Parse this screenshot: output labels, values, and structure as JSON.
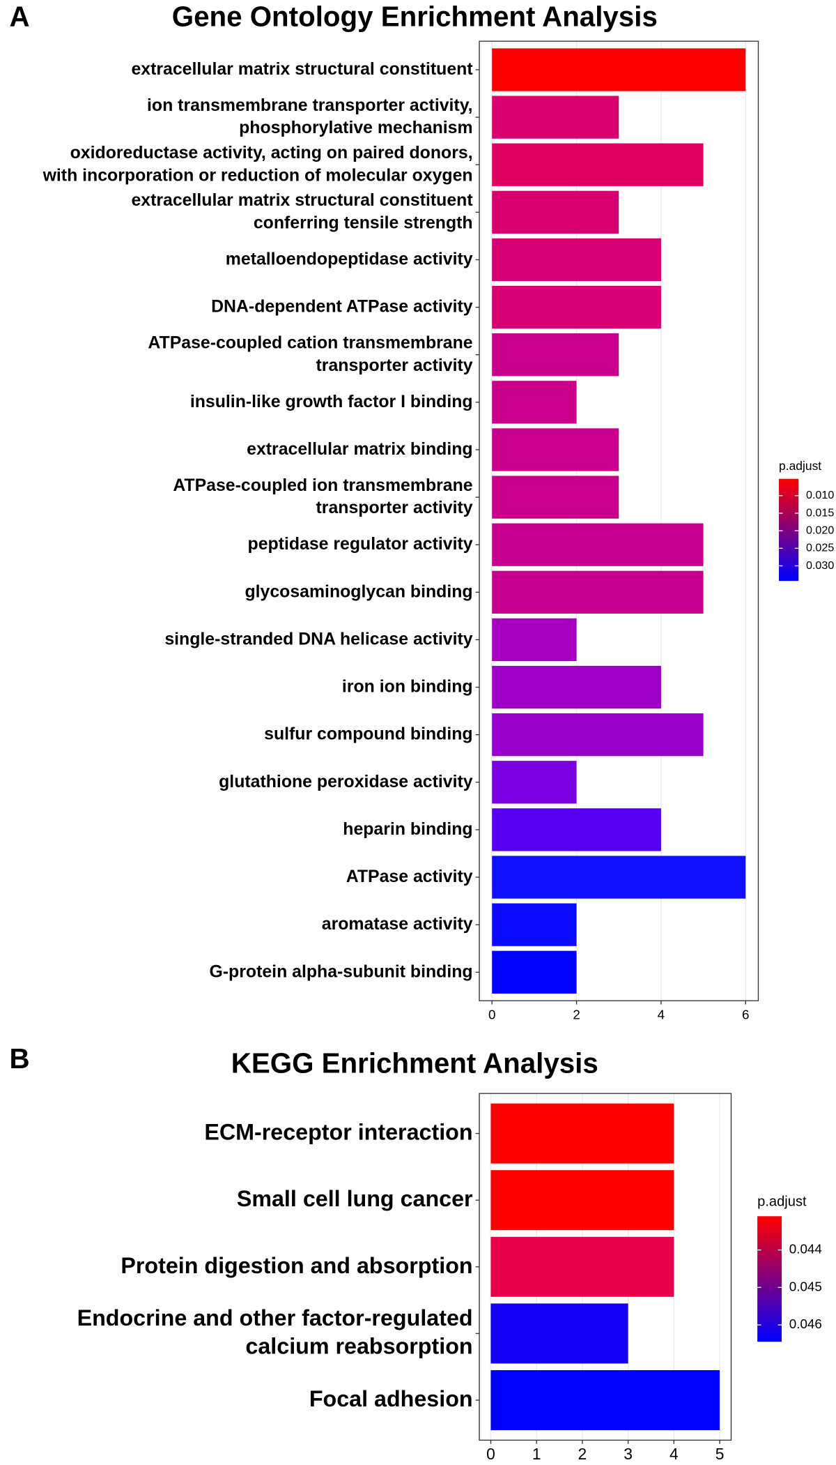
{
  "chart_data": [
    {
      "type": "bar",
      "panel": "A",
      "title": "Gene Ontology Enrichment Analysis",
      "categories": [
        "extracellular matrix structural constituent",
        "ion transmembrane transporter activity,\nphosphorylative mechanism",
        "oxidoreductase activity, acting on paired donors,\nwith incorporation or reduction of molecular oxygen",
        "extracellular matrix structural constituent\nconferring tensile strength",
        "metalloendopeptidase activity",
        "DNA-dependent ATPase activity",
        "ATPase-coupled cation transmembrane\ntransporter activity",
        "insulin-like growth factor I binding",
        "extracellular matrix binding",
        "ATPase-coupled ion transmembrane\ntransporter activity",
        "peptidase regulator activity",
        "glycosaminoglycan binding",
        "single-stranded DNA helicase activity",
        "iron ion binding",
        "sulfur compound binding",
        "glutathione peroxidase activity",
        "heparin binding",
        "ATPase activity",
        "aromatase activity",
        "G-protein alpha-subunit binding"
      ],
      "values": [
        6,
        3,
        5,
        3,
        4,
        4,
        3,
        2,
        3,
        3,
        5,
        5,
        2,
        4,
        5,
        2,
        4,
        6,
        2,
        2
      ],
      "colors": [
        "#fe0000",
        "#d9006f",
        "#df005f",
        "#d80070",
        "#d60073",
        "#d60073",
        "#c9008c",
        "#ca008a",
        "#c9008c",
        "#c9008c",
        "#c70090",
        "#c70090",
        "#a700c0",
        "#9e00c8",
        "#9800cc",
        "#7a00e0",
        "#5500f0",
        "#1010ff",
        "#0a0afc",
        "#0000ff"
      ],
      "xlim": [
        -0.3,
        6.3
      ],
      "xticks": [
        0,
        2,
        4,
        6
      ],
      "grid": true,
      "colorbar": {
        "title": "p.adjust",
        "lim": [
          0.0052,
          0.0343
        ],
        "colors": [
          "#ff0000",
          "#0000ff"
        ],
        "ticks": [
          {
            "value": 0.01,
            "label": "0.010"
          },
          0.015,
          {
            "value": 0.02,
            "label": "0.020"
          },
          0.025,
          {
            "value": 0.03,
            "label": "0.030"
          }
        ]
      }
    },
    {
      "type": "bar",
      "panel": "B",
      "title": "KEGG Enrichment Analysis",
      "categories": [
        "ECM-receptor interaction",
        "Small cell lung cancer",
        "Protein digestion and absorption",
        "Endocrine and other factor-regulated\ncalcium reabsorption",
        "Focal adhesion"
      ],
      "values": [
        4,
        4,
        4,
        3,
        5
      ],
      "colors": [
        "#ff0000",
        "#ff0000",
        "#e8004a",
        "#1400f5",
        "#0000ff"
      ],
      "xlim": [
        -0.25,
        5.25
      ],
      "xticks": [
        0,
        1,
        2,
        3,
        4,
        5
      ],
      "grid": true,
      "colorbar": {
        "title": "p.adjust",
        "lim": [
          0.0431,
          0.04645
        ],
        "colors": [
          "#ff0000",
          "#0000ff"
        ],
        "ticks": [
          0.044,
          0.045,
          0.046
        ]
      }
    }
  ]
}
